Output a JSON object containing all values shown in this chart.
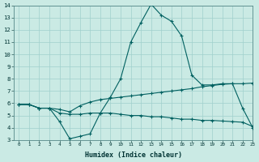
{
  "title": "",
  "xlabel": "Humidex (Indice chaleur)",
  "bg_color": "#caeae4",
  "grid_color": "#a0d0cc",
  "line_color": "#006060",
  "x_curve1": [
    0,
    1,
    2,
    3,
    4,
    5,
    6,
    7,
    8,
    9,
    10,
    11,
    12,
    13,
    14,
    15,
    16,
    17,
    18,
    19,
    20,
    21,
    22,
    23
  ],
  "y_curve1": [
    5.9,
    5.9,
    5.6,
    5.6,
    4.5,
    3.1,
    3.3,
    3.5,
    5.2,
    6.5,
    8.0,
    11.0,
    12.6,
    14.1,
    13.2,
    12.7,
    11.5,
    8.3,
    7.5,
    7.5,
    7.6,
    7.6,
    5.6,
    4.0
  ],
  "x_curve2": [
    0,
    1,
    2,
    3,
    4,
    5,
    6,
    7,
    8,
    9,
    10,
    11,
    12,
    13,
    14,
    15,
    16,
    17,
    18,
    19,
    20,
    21,
    22,
    23
  ],
  "y_curve2": [
    5.9,
    5.9,
    5.6,
    5.6,
    5.5,
    5.3,
    5.8,
    6.1,
    6.3,
    6.4,
    6.5,
    6.6,
    6.7,
    6.8,
    6.9,
    7.0,
    7.1,
    7.2,
    7.35,
    7.45,
    7.55,
    7.6,
    7.6,
    7.65
  ],
  "x_curve3": [
    0,
    1,
    2,
    3,
    4,
    5,
    6,
    7,
    8,
    9,
    10,
    11,
    12,
    13,
    14,
    15,
    16,
    17,
    18,
    19,
    20,
    21,
    22,
    23
  ],
  "y_curve3": [
    5.9,
    5.9,
    5.6,
    5.6,
    5.2,
    5.1,
    5.1,
    5.2,
    5.2,
    5.2,
    5.1,
    5.0,
    5.0,
    4.9,
    4.9,
    4.8,
    4.7,
    4.7,
    4.6,
    4.6,
    4.55,
    4.5,
    4.45,
    4.1
  ],
  "ylim": [
    3,
    14
  ],
  "xlim": [
    -0.5,
    23
  ],
  "yticks": [
    3,
    4,
    5,
    6,
    7,
    8,
    9,
    10,
    11,
    12,
    13,
    14
  ],
  "xticks": [
    0,
    1,
    2,
    3,
    4,
    5,
    6,
    7,
    8,
    9,
    10,
    11,
    12,
    13,
    14,
    15,
    16,
    17,
    18,
    19,
    20,
    21,
    22,
    23
  ],
  "xlabel_fontsize": 6.0,
  "xtick_fontsize": 4.2,
  "ytick_fontsize": 5.2,
  "linewidth": 0.8,
  "markersize": 2.5
}
